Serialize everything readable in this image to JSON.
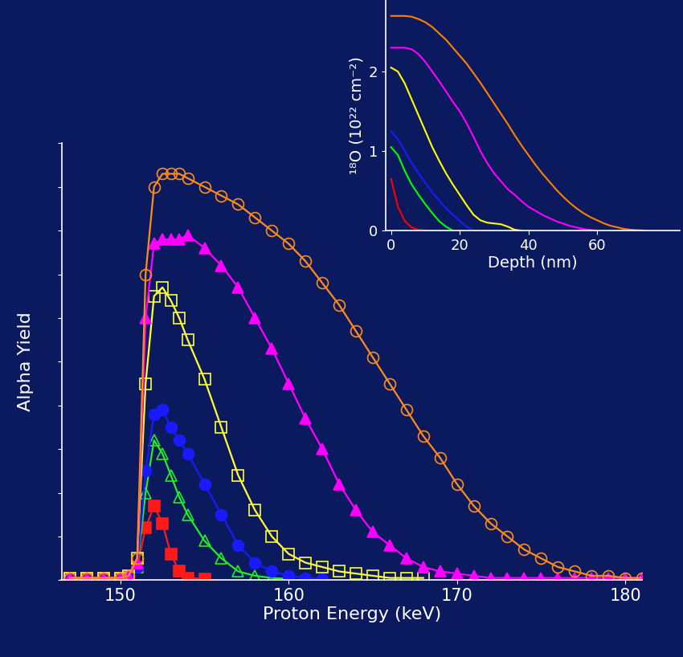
{
  "chart_data": [
    {
      "type": "scatter",
      "x_label": "Proton Energy (keV)",
      "y_label": "Alpha Yield",
      "tick_labels": "x",
      "xlim": [
        146.5,
        181
      ],
      "xticks": [
        150,
        160,
        170,
        180
      ],
      "ylim": [
        0,
        100
      ],
      "yticks": [
        0,
        10,
        20,
        30,
        40,
        50,
        60,
        70,
        80,
        90,
        100
      ],
      "x": [
        147,
        148,
        149,
        150,
        150.5,
        151,
        151.5,
        152,
        152.5,
        153,
        153.5,
        154,
        155,
        156,
        157,
        158,
        159,
        160,
        161,
        162,
        163,
        164,
        165,
        166,
        167,
        168,
        169,
        170,
        171,
        172,
        173,
        174,
        175,
        176,
        177,
        178,
        179,
        180,
        181
      ],
      "series": [
        {
          "color": "#ff8c1a",
          "marker": "open_circle",
          "line_style": "solid",
          "values": [
            0.5,
            0.5,
            0.5,
            0.5,
            1,
            5,
            70,
            90,
            93,
            93,
            93,
            92,
            90,
            88,
            86,
            83,
            80,
            77,
            73,
            68,
            63,
            57,
            51,
            45,
            39,
            33,
            28,
            22,
            17,
            13,
            10,
            7,
            5,
            3,
            2,
            1,
            1,
            0.5,
            0.5
          ]
        },
        {
          "color": "#ff00ff",
          "marker": "triangle",
          "line_style": "solid",
          "values": [
            0.5,
            0.5,
            0.5,
            0.5,
            1,
            4,
            60,
            77,
            78,
            78,
            78,
            79,
            76,
            72,
            67,
            60,
            53,
            45,
            37,
            30,
            22,
            16,
            11,
            8,
            5,
            3,
            2,
            1.5,
            1,
            0.5,
            0.5,
            0.5,
            0.5,
            0.5,
            0.5,
            0.5,
            0.5,
            0.5,
            0.5
          ]
        },
        {
          "color": "#ffff33",
          "marker": "open_square",
          "line_style": "solid",
          "values": [
            0.5,
            0.5,
            0.5,
            0.5,
            1,
            5,
            45,
            65,
            67,
            64,
            60,
            55,
            46,
            35,
            24,
            16,
            10,
            6,
            4,
            3,
            2,
            1.5,
            1,
            0.5,
            0.5,
            0.5,
            null,
            null,
            null,
            null,
            null,
            null,
            null,
            null,
            null,
            null,
            null,
            null,
            null
          ]
        },
        {
          "color": "#1a1aff",
          "marker": "circle",
          "line_style": "solid",
          "values": [
            0.5,
            0.5,
            0.5,
            0.5,
            1,
            3,
            25,
            38,
            39,
            35,
            32,
            29,
            22,
            15,
            8,
            4,
            2,
            1,
            0.5,
            0.3,
            null,
            null,
            null,
            null,
            null,
            null,
            null,
            null,
            null,
            null,
            null,
            null,
            null,
            null,
            null,
            null,
            null,
            null,
            null
          ]
        },
        {
          "color": "#22ee22",
          "marker": "open_triangle",
          "line_style": "solid",
          "values": [
            0.5,
            0.5,
            0.5,
            0.5,
            1,
            3,
            20,
            32,
            29,
            24,
            19,
            15,
            9,
            5,
            2,
            1,
            0.5,
            0.3,
            null,
            null,
            null,
            null,
            null,
            null,
            null,
            null,
            null,
            null,
            null,
            null,
            null,
            null,
            null,
            null,
            null,
            null,
            null,
            null,
            null
          ]
        },
        {
          "color": "#ff1a1a",
          "marker": "square",
          "line_style": "solid",
          "values": [
            0.5,
            0.5,
            0.5,
            0.5,
            1,
            3,
            12,
            17,
            13,
            6,
            2,
            0.5,
            0.3,
            null,
            null,
            null,
            null,
            null,
            null,
            null,
            null,
            null,
            null,
            null,
            null,
            null,
            null,
            null,
            null,
            null,
            null,
            null,
            null,
            null,
            null,
            null,
            null,
            null,
            null
          ]
        }
      ]
    },
    {
      "type": "line",
      "x_label": "Depth (nm)",
      "y_label": "¹⁸O (10²² cm⁻²)",
      "xlim": [
        -1.5,
        84
      ],
      "xticks": [
        0,
        20,
        40,
        60
      ],
      "ylim": [
        0,
        2.9
      ],
      "yticks": [
        0,
        1,
        2
      ],
      "x": [
        0,
        2,
        4,
        6,
        8,
        10,
        12,
        14,
        16,
        18,
        20,
        22,
        24,
        26,
        28,
        30,
        32,
        34,
        36,
        38,
        40,
        42,
        44,
        46,
        48,
        50,
        52,
        54,
        56,
        58,
        60,
        62,
        64,
        66,
        68,
        70,
        72,
        74,
        76
      ],
      "series": [
        {
          "color": "#ff8000",
          "values": [
            2.7,
            2.7,
            2.7,
            2.69,
            2.66,
            2.62,
            2.56,
            2.48,
            2.4,
            2.3,
            2.2,
            2.1,
            1.98,
            1.86,
            1.73,
            1.6,
            1.47,
            1.34,
            1.2,
            1.07,
            0.95,
            0.83,
            0.72,
            0.62,
            0.52,
            0.43,
            0.35,
            0.28,
            0.22,
            0.17,
            0.13,
            0.09,
            0.06,
            0.04,
            0.02,
            0.01,
            0.005,
            0,
            null
          ]
        },
        {
          "color": "#ff00ff",
          "values": [
            2.3,
            2.3,
            2.3,
            2.28,
            2.22,
            2.12,
            2.0,
            1.88,
            1.75,
            1.62,
            1.5,
            1.35,
            1.18,
            1.0,
            0.85,
            0.72,
            0.62,
            0.52,
            0.45,
            0.37,
            0.3,
            0.25,
            0.2,
            0.16,
            0.12,
            0.09,
            0.06,
            0.04,
            0.02,
            0.01,
            0,
            null,
            null,
            null,
            null,
            null,
            null,
            null,
            null
          ]
        },
        {
          "color": "#ffff00",
          "values": [
            2.05,
            2.0,
            1.85,
            1.65,
            1.45,
            1.25,
            1.05,
            0.88,
            0.72,
            0.58,
            0.45,
            0.32,
            0.2,
            0.13,
            0.1,
            0.09,
            0.08,
            0.05,
            0.01,
            0,
            null,
            null,
            null,
            null,
            null,
            null,
            null,
            null,
            null,
            null,
            null,
            null,
            null,
            null,
            null,
            null,
            null,
            null,
            null
          ]
        },
        {
          "color": "#1a1aff",
          "values": [
            1.25,
            1.15,
            1.0,
            0.85,
            0.72,
            0.6,
            0.48,
            0.38,
            0.28,
            0.2,
            0.12,
            0.05,
            0,
            null,
            null,
            null,
            null,
            null,
            null,
            null,
            null,
            null,
            null,
            null,
            null,
            null,
            null,
            null,
            null,
            null,
            null,
            null,
            null,
            null,
            null,
            null,
            null,
            null,
            null
          ]
        },
        {
          "color": "#00ff00",
          "values": [
            1.05,
            0.95,
            0.75,
            0.58,
            0.45,
            0.33,
            0.22,
            0.12,
            0.05,
            0,
            null,
            null,
            null,
            null,
            null,
            null,
            null,
            null,
            null,
            null,
            null,
            null,
            null,
            null,
            null,
            null,
            null,
            null,
            null,
            null,
            null,
            null,
            null,
            null,
            null,
            null,
            null,
            null,
            null
          ]
        },
        {
          "color": "#ff0000",
          "values": [
            0.65,
            0.3,
            0.12,
            0.04,
            0.01,
            0,
            null,
            null,
            null,
            null,
            null,
            null,
            null,
            null,
            null,
            null,
            null,
            null,
            null,
            null,
            null,
            null,
            null,
            null,
            null,
            null,
            null,
            null,
            null,
            null,
            null,
            null,
            null,
            null,
            null,
            null,
            null,
            null,
            null
          ]
        }
      ]
    }
  ]
}
